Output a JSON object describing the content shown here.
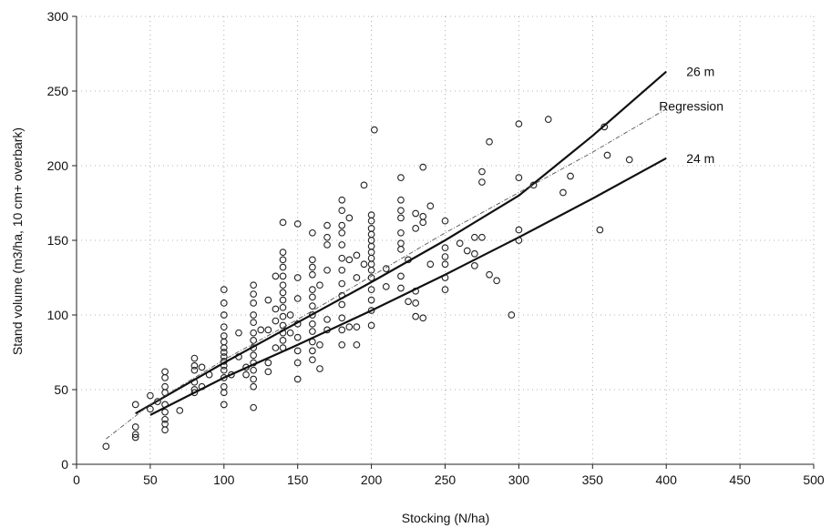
{
  "chart_data": {
    "type": "scatter",
    "xlabel": "Stocking (N/ha)",
    "ylabel": "Stand volume (m3/ha, 10 cm+ overbark)",
    "xlim": [
      0,
      500
    ],
    "ylim": [
      0,
      300
    ],
    "xticks": [
      "0",
      "50",
      "100",
      "150",
      "200",
      "250",
      "300",
      "350",
      "400",
      "450",
      "500"
    ],
    "yticks": [
      "0",
      "50",
      "100",
      "150",
      "200",
      "250",
      "300"
    ],
    "grid": true,
    "scatter_points": [
      [
        20,
        12
      ],
      [
        40,
        40
      ],
      [
        40,
        25
      ],
      [
        40,
        20
      ],
      [
        40,
        18
      ],
      [
        50,
        46
      ],
      [
        50,
        37
      ],
      [
        55,
        42
      ],
      [
        60,
        62
      ],
      [
        60,
        58
      ],
      [
        60,
        52
      ],
      [
        60,
        48
      ],
      [
        60,
        40
      ],
      [
        60,
        35
      ],
      [
        60,
        30
      ],
      [
        60,
        27
      ],
      [
        60,
        23
      ],
      [
        70,
        36
      ],
      [
        80,
        71
      ],
      [
        80,
        66
      ],
      [
        80,
        63
      ],
      [
        80,
        55
      ],
      [
        80,
        50
      ],
      [
        80,
        48
      ],
      [
        85,
        65
      ],
      [
        85,
        52
      ],
      [
        90,
        60
      ],
      [
        100,
        117
      ],
      [
        100,
        108
      ],
      [
        100,
        100
      ],
      [
        100,
        92
      ],
      [
        100,
        86
      ],
      [
        100,
        82
      ],
      [
        100,
        78
      ],
      [
        100,
        75
      ],
      [
        100,
        72
      ],
      [
        100,
        69
      ],
      [
        100,
        66
      ],
      [
        100,
        63
      ],
      [
        100,
        58
      ],
      [
        100,
        52
      ],
      [
        100,
        48
      ],
      [
        100,
        40
      ],
      [
        105,
        60
      ],
      [
        110,
        88
      ],
      [
        110,
        72
      ],
      [
        115,
        65
      ],
      [
        115,
        60
      ],
      [
        120,
        120
      ],
      [
        120,
        114
      ],
      [
        120,
        108
      ],
      [
        120,
        100
      ],
      [
        120,
        95
      ],
      [
        120,
        88
      ],
      [
        120,
        83
      ],
      [
        120,
        78
      ],
      [
        120,
        73
      ],
      [
        120,
        68
      ],
      [
        120,
        63
      ],
      [
        120,
        57
      ],
      [
        120,
        52
      ],
      [
        120,
        38
      ],
      [
        125,
        90
      ],
      [
        130,
        110
      ],
      [
        130,
        90
      ],
      [
        130,
        68
      ],
      [
        130,
        62
      ],
      [
        135,
        126
      ],
      [
        135,
        104
      ],
      [
        135,
        96
      ],
      [
        135,
        78
      ],
      [
        140,
        162
      ],
      [
        140,
        142
      ],
      [
        140,
        137
      ],
      [
        140,
        132
      ],
      [
        140,
        126
      ],
      [
        140,
        120
      ],
      [
        140,
        115
      ],
      [
        140,
        110
      ],
      [
        140,
        105
      ],
      [
        140,
        99
      ],
      [
        140,
        93
      ],
      [
        140,
        88
      ],
      [
        140,
        83
      ],
      [
        140,
        78
      ],
      [
        145,
        100
      ],
      [
        145,
        88
      ],
      [
        150,
        161
      ],
      [
        150,
        125
      ],
      [
        150,
        111
      ],
      [
        150,
        94
      ],
      [
        150,
        85
      ],
      [
        150,
        76
      ],
      [
        150,
        68
      ],
      [
        150,
        57
      ],
      [
        160,
        155
      ],
      [
        160,
        137
      ],
      [
        160,
        132
      ],
      [
        160,
        127
      ],
      [
        160,
        117
      ],
      [
        160,
        112
      ],
      [
        160,
        106
      ],
      [
        160,
        100
      ],
      [
        160,
        94
      ],
      [
        160,
        89
      ],
      [
        160,
        82
      ],
      [
        160,
        76
      ],
      [
        160,
        70
      ],
      [
        165,
        120
      ],
      [
        165,
        80
      ],
      [
        165,
        64
      ],
      [
        170,
        160
      ],
      [
        170,
        152
      ],
      [
        170,
        147
      ],
      [
        170,
        130
      ],
      [
        170,
        97
      ],
      [
        170,
        90
      ],
      [
        180,
        177
      ],
      [
        180,
        170
      ],
      [
        180,
        160
      ],
      [
        180,
        155
      ],
      [
        180,
        147
      ],
      [
        180,
        138
      ],
      [
        180,
        130
      ],
      [
        180,
        121
      ],
      [
        180,
        113
      ],
      [
        180,
        107
      ],
      [
        180,
        98
      ],
      [
        180,
        90
      ],
      [
        180,
        80
      ],
      [
        185,
        165
      ],
      [
        185,
        137
      ],
      [
        185,
        92
      ],
      [
        190,
        140
      ],
      [
        190,
        125
      ],
      [
        190,
        92
      ],
      [
        190,
        80
      ],
      [
        195,
        187
      ],
      [
        195,
        134
      ],
      [
        200,
        167
      ],
      [
        200,
        163
      ],
      [
        200,
        158
      ],
      [
        200,
        154
      ],
      [
        200,
        150
      ],
      [
        200,
        146
      ],
      [
        200,
        142
      ],
      [
        200,
        138
      ],
      [
        200,
        134
      ],
      [
        200,
        130
      ],
      [
        200,
        125
      ],
      [
        200,
        117
      ],
      [
        200,
        110
      ],
      [
        200,
        103
      ],
      [
        200,
        93
      ],
      [
        202,
        224
      ],
      [
        210,
        131
      ],
      [
        210,
        119
      ],
      [
        220,
        192
      ],
      [
        220,
        177
      ],
      [
        220,
        170
      ],
      [
        220,
        165
      ],
      [
        220,
        155
      ],
      [
        220,
        148
      ],
      [
        220,
        144
      ],
      [
        220,
        126
      ],
      [
        220,
        118
      ],
      [
        225,
        137
      ],
      [
        225,
        109
      ],
      [
        230,
        168
      ],
      [
        230,
        158
      ],
      [
        230,
        116
      ],
      [
        230,
        108
      ],
      [
        230,
        99
      ],
      [
        235,
        199
      ],
      [
        235,
        166
      ],
      [
        235,
        162
      ],
      [
        235,
        98
      ],
      [
        240,
        173
      ],
      [
        240,
        134
      ],
      [
        250,
        163
      ],
      [
        250,
        145
      ],
      [
        250,
        139
      ],
      [
        250,
        134
      ],
      [
        250,
        125
      ],
      [
        250,
        117
      ],
      [
        260,
        148
      ],
      [
        265,
        143
      ],
      [
        270,
        152
      ],
      [
        270,
        141
      ],
      [
        270,
        133
      ],
      [
        275,
        196
      ],
      [
        275,
        189
      ],
      [
        275,
        152
      ],
      [
        280,
        216
      ],
      [
        280,
        127
      ],
      [
        285,
        123
      ],
      [
        295,
        100
      ],
      [
        300,
        228
      ],
      [
        300,
        192
      ],
      [
        300,
        157
      ],
      [
        300,
        150
      ],
      [
        310,
        187
      ],
      [
        320,
        231
      ],
      [
        330,
        182
      ],
      [
        335,
        193
      ],
      [
        355,
        157
      ],
      [
        358,
        226
      ],
      [
        360,
        207
      ],
      [
        375,
        204
      ]
    ],
    "series": [
      {
        "name": "26 m",
        "x": [
          40,
          100,
          150,
          200,
          250,
          300,
          350,
          400
        ],
        "y": [
          34,
          68,
          95,
          122,
          150,
          180,
          220,
          263
        ]
      },
      {
        "name": "Regression",
        "x": [
          20,
          50,
          100,
          150,
          200,
          250,
          300,
          350,
          400
        ],
        "y": [
          17,
          40,
          70,
          97,
          126,
          155,
          182,
          209,
          238
        ]
      },
      {
        "name": "24 m",
        "x": [
          50,
          100,
          150,
          200,
          250,
          300,
          350,
          400
        ],
        "y": [
          33,
          58,
          80,
          103,
          127,
          152,
          178,
          205
        ]
      }
    ]
  }
}
